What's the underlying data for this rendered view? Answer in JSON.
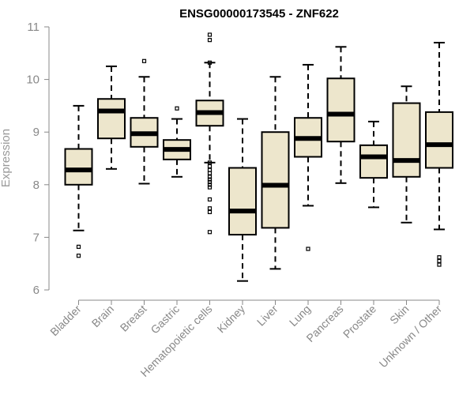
{
  "chart_data": {
    "type": "boxplot",
    "title": "ENSG00000173545 - ZNF622",
    "xlabel": "",
    "ylabel": "Expression",
    "ylim": [
      6,
      11
    ],
    "yticks": [
      6,
      7,
      8,
      9,
      10,
      11
    ],
    "colors": {
      "box_fill": "#ede6cc",
      "box_stroke": "#000000",
      "axis": "#888888",
      "tick_text": "#888888"
    },
    "categories": [
      "Bladder",
      "Brain",
      "Breast",
      "Gastric",
      "Hematopoietic cells",
      "Kidney",
      "Liver",
      "Lung",
      "Pancreas",
      "Prostate",
      "Skin",
      "Unknown / Other"
    ],
    "boxes": [
      {
        "name": "Bladder",
        "whisker_low": 7.13,
        "q1": 8.0,
        "median": 8.28,
        "q3": 8.68,
        "whisker_high": 9.5,
        "outliers": [
          6.82,
          6.65
        ]
      },
      {
        "name": "Brain",
        "whisker_low": 8.3,
        "q1": 8.88,
        "median": 9.4,
        "q3": 9.63,
        "whisker_high": 10.25,
        "outliers": []
      },
      {
        "name": "Breast",
        "whisker_low": 8.02,
        "q1": 8.72,
        "median": 8.97,
        "q3": 9.27,
        "whisker_high": 10.05,
        "outliers": [
          10.35
        ]
      },
      {
        "name": "Gastric",
        "whisker_low": 8.15,
        "q1": 8.48,
        "median": 8.67,
        "q3": 8.85,
        "whisker_high": 9.25,
        "outliers": [
          9.45
        ]
      },
      {
        "name": "Hematopoietic cells",
        "whisker_low": 8.42,
        "q1": 9.12,
        "median": 9.37,
        "q3": 9.6,
        "whisker_high": 10.32,
        "outliers": [
          10.85,
          10.75,
          10.32,
          8.42,
          8.35,
          8.28,
          8.22,
          8.15,
          8.1,
          8.05,
          8.0,
          7.95,
          7.72,
          7.55,
          7.48,
          7.1
        ]
      },
      {
        "name": "Kidney",
        "whisker_low": 6.17,
        "q1": 7.05,
        "median": 7.5,
        "q3": 8.32,
        "whisker_high": 9.25,
        "outliers": []
      },
      {
        "name": "Liver",
        "whisker_low": 6.4,
        "q1": 7.18,
        "median": 7.99,
        "q3": 9.0,
        "whisker_high": 10.05,
        "outliers": []
      },
      {
        "name": "Lung",
        "whisker_low": 7.6,
        "q1": 8.53,
        "median": 8.88,
        "q3": 9.27,
        "whisker_high": 10.28,
        "outliers": [
          6.78
        ]
      },
      {
        "name": "Pancreas",
        "whisker_low": 8.03,
        "q1": 8.82,
        "median": 9.34,
        "q3": 10.02,
        "whisker_high": 10.62,
        "outliers": []
      },
      {
        "name": "Prostate",
        "whisker_low": 7.57,
        "q1": 8.13,
        "median": 8.53,
        "q3": 8.75,
        "whisker_high": 9.2,
        "outliers": []
      },
      {
        "name": "Skin",
        "whisker_low": 7.28,
        "q1": 8.15,
        "median": 8.46,
        "q3": 9.55,
        "whisker_high": 9.87,
        "outliers": []
      },
      {
        "name": "Unknown / Other",
        "whisker_low": 7.15,
        "q1": 8.32,
        "median": 8.76,
        "q3": 9.38,
        "whisker_high": 10.7,
        "outliers": [
          6.62,
          6.55,
          6.48
        ]
      }
    ]
  }
}
